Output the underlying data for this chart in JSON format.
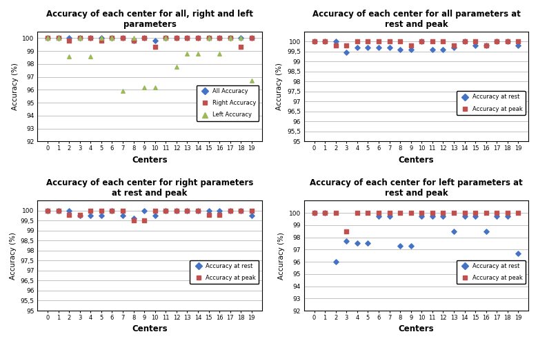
{
  "centers": [
    0,
    1,
    2,
    3,
    4,
    5,
    6,
    7,
    8,
    9,
    10,
    11,
    12,
    13,
    14,
    15,
    16,
    17,
    18,
    19
  ],
  "plot1": {
    "title": "Accuracy of each center for all, right and left\nparameters",
    "all_accuracy": [
      100,
      100,
      100,
      100,
      100,
      100,
      100,
      100,
      99.8,
      100,
      99.8,
      100,
      100,
      100,
      100,
      100,
      100,
      100,
      100,
      100
    ],
    "right_accuracy": [
      100,
      100,
      99.8,
      100,
      100,
      99.8,
      100,
      100,
      99.8,
      100,
      99.3,
      100,
      100,
      100,
      100,
      100,
      100,
      100,
      99.3,
      100
    ],
    "left_accuracy": [
      100,
      100,
      98.6,
      100,
      98.6,
      100,
      100,
      95.9,
      100,
      96.2,
      96.2,
      100,
      97.8,
      98.8,
      98.8,
      100,
      98.8,
      100,
      100,
      96.7
    ],
    "ylim": [
      92,
      100.5
    ],
    "yticks": [
      92,
      93,
      94,
      95,
      96,
      97,
      98,
      99,
      100
    ],
    "ylabel": "Accuracy (%)",
    "xlabel": "Centers",
    "legend_labels": [
      "All Accuracy",
      "Right Accuracy",
      "Left Accuracy"
    ]
  },
  "plot2": {
    "title": "Accuracy of each center for all parameters at\nrest and peak",
    "rest": [
      100,
      100,
      100,
      99.45,
      99.7,
      99.7,
      99.7,
      99.7,
      99.6,
      99.6,
      100,
      99.6,
      99.6,
      99.7,
      100,
      99.8,
      99.8,
      100,
      100,
      99.8
    ],
    "peak": [
      100,
      100,
      99.8,
      99.8,
      100,
      100,
      100,
      100,
      100.0,
      99.8,
      100,
      100,
      100,
      99.8,
      100,
      100,
      99.8,
      100,
      100,
      100
    ],
    "ylim": [
      95,
      100.5
    ],
    "yticks": [
      95,
      95.5,
      96,
      96.5,
      97,
      97.5,
      98,
      98.5,
      99,
      99.5,
      100
    ],
    "ylabel": "Accuracy (%)",
    "xlabel": "Centers",
    "legend_labels": [
      "Accuracy at rest",
      "Accuracy at peak"
    ]
  },
  "plot3": {
    "title": "Accuracy of each center for right parameters\nat rest and peak",
    "rest": [
      100,
      100,
      100,
      99.75,
      99.75,
      99.75,
      100,
      99.75,
      99.6,
      100,
      99.75,
      100,
      100,
      100,
      100,
      100,
      100,
      100,
      100,
      99.75
    ],
    "peak": [
      100,
      100,
      99.8,
      99.8,
      100,
      100,
      100,
      100,
      99.5,
      99.5,
      100,
      100,
      100,
      100,
      100,
      99.8,
      99.8,
      100,
      100,
      100
    ],
    "ylim": [
      95,
      100.5
    ],
    "yticks": [
      95,
      95.5,
      96,
      96.5,
      97,
      97.5,
      98,
      98.5,
      99,
      99.5,
      100
    ],
    "ylabel": "Accuracy (%)",
    "xlabel": "Centers",
    "legend_labels": [
      "Accuracy at rest",
      "Accuracy at peak"
    ]
  },
  "plot4": {
    "title": "Accuracy of each center for left parameters at\nrest and peak",
    "rest": [
      100,
      100,
      96,
      97.7,
      97.5,
      97.5,
      99.7,
      99.7,
      97.3,
      97.3,
      99.7,
      99.7,
      99.7,
      98.5,
      99.7,
      99.7,
      98.5,
      99.7,
      99.7,
      96.7
    ],
    "peak": [
      100,
      100,
      100,
      98.5,
      100,
      100,
      100,
      100,
      100,
      100,
      100,
      100,
      100,
      100,
      100,
      100,
      100,
      100,
      100,
      100
    ],
    "ylim": [
      92,
      101
    ],
    "yticks": [
      92,
      93,
      94,
      95,
      96,
      97,
      98,
      99,
      100
    ],
    "ylabel": "Accuracy (%)",
    "xlabel": "Centers",
    "legend_labels": [
      "Accuracy at rest",
      "Accuracy at peak"
    ]
  },
  "blue_color": "#4472C4",
  "red_color": "#C0504D",
  "green_color": "#9BBB59",
  "bg_color": "#FFFFFF",
  "grid_color": "#AAAAAA"
}
